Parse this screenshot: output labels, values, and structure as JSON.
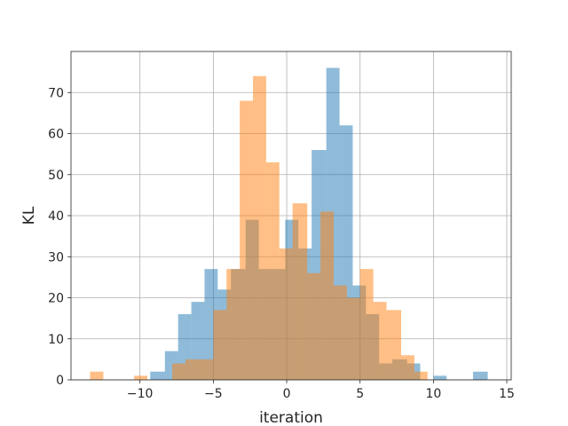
{
  "chart_data": {
    "type": "histogram",
    "title": "",
    "xlabel": "iteration",
    "ylabel": "KL",
    "xlim": [
      -14.7,
      15.3
    ],
    "ylim": [
      0,
      80
    ],
    "xticks": [
      -10,
      -5,
      0,
      5,
      10,
      15
    ],
    "yticks": [
      0,
      10,
      20,
      30,
      40,
      50,
      60,
      70
    ],
    "xtick_labels": [
      "−10",
      "−5",
      "0",
      "5",
      "10",
      "15"
    ],
    "ytick_labels": [
      "0",
      "10",
      "20",
      "30",
      "40",
      "50",
      "60",
      "70"
    ],
    "grid": true,
    "legend": false,
    "series": [
      {
        "color": "#1f77b4",
        "opacity": 0.5,
        "bins": [
          {
            "x0": -9.3,
            "x1": -8.3,
            "y": 2
          },
          {
            "x0": -8.3,
            "x1": -7.4,
            "y": 7
          },
          {
            "x0": -7.4,
            "x1": -6.5,
            "y": 16
          },
          {
            "x0": -6.5,
            "x1": -5.6,
            "y": 19
          },
          {
            "x0": -5.6,
            "x1": -4.7,
            "y": 27
          },
          {
            "x0": -4.7,
            "x1": -3.8,
            "y": 22
          },
          {
            "x0": -3.8,
            "x1": -2.8,
            "y": 27
          },
          {
            "x0": -2.8,
            "x1": -1.9,
            "y": 39
          },
          {
            "x0": -1.9,
            "x1": -1.0,
            "y": 27
          },
          {
            "x0": -1.0,
            "x1": -0.1,
            "y": 27
          },
          {
            "x0": -0.1,
            "x1": 0.8,
            "y": 39
          },
          {
            "x0": 0.8,
            "x1": 1.7,
            "y": 32
          },
          {
            "x0": 1.7,
            "x1": 2.7,
            "y": 56
          },
          {
            "x0": 2.7,
            "x1": 3.6,
            "y": 76
          },
          {
            "x0": 3.6,
            "x1": 4.5,
            "y": 62
          },
          {
            "x0": 4.5,
            "x1": 5.4,
            "y": 23
          },
          {
            "x0": 5.4,
            "x1": 6.3,
            "y": 16
          },
          {
            "x0": 6.3,
            "x1": 7.2,
            "y": 4
          },
          {
            "x0": 7.2,
            "x1": 8.2,
            "y": 5
          },
          {
            "x0": 8.2,
            "x1": 9.1,
            "y": 4
          },
          {
            "x0": 10.0,
            "x1": 10.9,
            "y": 1
          },
          {
            "x0": 12.7,
            "x1": 13.7,
            "y": 2
          }
        ]
      },
      {
        "color": "#ff7f0e",
        "opacity": 0.5,
        "bins": [
          {
            "x0": -13.4,
            "x1": -12.5,
            "y": 2
          },
          {
            "x0": -10.4,
            "x1": -9.5,
            "y": 1
          },
          {
            "x0": -7.8,
            "x1": -6.9,
            "y": 4
          },
          {
            "x0": -6.9,
            "x1": -6.0,
            "y": 5
          },
          {
            "x0": -6.0,
            "x1": -5.0,
            "y": 5
          },
          {
            "x0": -5.0,
            "x1": -4.1,
            "y": 17
          },
          {
            "x0": -4.1,
            "x1": -3.2,
            "y": 27
          },
          {
            "x0": -3.2,
            "x1": -2.3,
            "y": 68
          },
          {
            "x0": -2.3,
            "x1": -1.4,
            "y": 74
          },
          {
            "x0": -1.4,
            "x1": -0.5,
            "y": 53
          },
          {
            "x0": -0.5,
            "x1": 0.4,
            "y": 32
          },
          {
            "x0": 0.4,
            "x1": 1.4,
            "y": 43
          },
          {
            "x0": 1.4,
            "x1": 2.3,
            "y": 26
          },
          {
            "x0": 2.3,
            "x1": 3.2,
            "y": 41
          },
          {
            "x0": 3.2,
            "x1": 4.1,
            "y": 23
          },
          {
            "x0": 4.1,
            "x1": 5.0,
            "y": 20
          },
          {
            "x0": 5.0,
            "x1": 5.9,
            "y": 27
          },
          {
            "x0": 5.9,
            "x1": 6.8,
            "y": 19
          },
          {
            "x0": 6.8,
            "x1": 7.8,
            "y": 17
          },
          {
            "x0": 7.8,
            "x1": 8.7,
            "y": 6
          },
          {
            "x0": 8.7,
            "x1": 9.6,
            "y": 2
          }
        ]
      }
    ]
  }
}
